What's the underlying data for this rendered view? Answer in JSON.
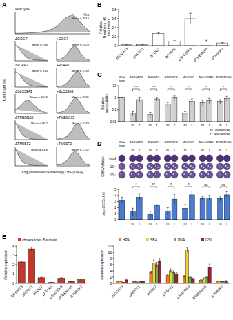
{
  "chart_data": [
    {
      "type": "line",
      "panel_label": "A",
      "ylabel": "Cell number",
      "xlabel": "Log (fluorescence intensity) / HS (10E4)",
      "x": [
        0,
        1,
        2,
        3,
        4,
        5,
        6,
        7,
        8,
        9
      ],
      "xlim": [
        0,
        9
      ],
      "ylim": [
        0,
        100
      ],
      "tick_labels": false,
      "color": "#bdbdbd",
      "series": [
        {
          "name": "Wild type",
          "label": "+Vec",
          "annotation": "Mean = 3014",
          "values": [
            2,
            3,
            5,
            8,
            15,
            35,
            75,
            95,
            50,
            10
          ]
        },
        {
          "name": "ΔCOG7",
          "annotation": "Mean = 286",
          "values": [
            90,
            70,
            40,
            20,
            10,
            6,
            4,
            3,
            2,
            1
          ]
        },
        {
          "name": "+COG7",
          "annotation": "Mean = 1129",
          "values": [
            5,
            10,
            20,
            40,
            70,
            85,
            60,
            30,
            10,
            3
          ]
        },
        {
          "name": "ΔPTAR1",
          "annotation": "Mean = 330",
          "values": [
            85,
            75,
            45,
            22,
            10,
            6,
            4,
            3,
            2,
            1
          ]
        },
        {
          "name": "+PTAR1",
          "annotation": "Mean = 2339",
          "values": [
            3,
            5,
            10,
            25,
            50,
            80,
            90,
            55,
            20,
            5
          ]
        },
        {
          "name": "ΔSLC39A9",
          "annotation": "Mean = 1076",
          "values": [
            20,
            35,
            55,
            75,
            70,
            50,
            30,
            15,
            6,
            2
          ]
        },
        {
          "name": "+SLC39A9",
          "annotation": "Mean = 2331",
          "values": [
            3,
            6,
            12,
            30,
            60,
            90,
            75,
            40,
            12,
            3
          ]
        },
        {
          "name": "ΔTMEM165",
          "annotation": "Mean = 96.2",
          "values": [
            95,
            60,
            25,
            12,
            6,
            3,
            2,
            1,
            1,
            0
          ]
        },
        {
          "name": "+TMEM165",
          "annotation": "Mean = 2743",
          "values": [
            3,
            5,
            10,
            20,
            45,
            80,
            90,
            60,
            20,
            5
          ]
        },
        {
          "name": "ΔTM9SF2",
          "annotation": "Mean = 61.6",
          "values": [
            95,
            55,
            22,
            10,
            5,
            3,
            2,
            1,
            1,
            0
          ]
        },
        {
          "name": "+TM9SF2",
          "annotation": "Mean = 1752",
          "values": [
            4,
            8,
            16,
            35,
            65,
            85,
            65,
            35,
            10,
            3
          ]
        }
      ]
    },
    {
      "type": "bar",
      "panel_label": "B",
      "ylabel": "Relative N-sulfated HS expression",
      "categories": [
        "ΔB3GAT3",
        "ΔNDST1",
        "ΔCOG7",
        "ΔPTAR1",
        "ΔSLC39A9",
        "ΔTMEM165",
        "ΔTM9SF2"
      ],
      "values": [
        0.02,
        0.02,
        0.27,
        0.1,
        0.6,
        0.1,
        0.06
      ],
      "errors": [
        0.01,
        0.01,
        0.02,
        0.01,
        0.12,
        0.02,
        0.01
      ],
      "ylim": [
        0,
        0.8
      ],
      "yticks": [
        0,
        0.2,
        0.4,
        0.6,
        0.8
      ],
      "color": "#ffffff"
    },
    {
      "type": "bar",
      "panel_label": "C",
      "ylabel": "Relative susceptibility",
      "groups": [
        "Wild type",
        "ΔB3GAT3",
        "ΔNDST1",
        "ΔTM9SF2",
        "ΔCOG7",
        "ΔSLC39A9",
        "ΔTMEM165"
      ],
      "categories": [
        null,
        "m",
        "r",
        "m",
        "r",
        "m",
        "r",
        "m",
        "r",
        "m",
        "r",
        "m",
        "r"
      ],
      "values": [
        1,
        0.05,
        0.7,
        0.04,
        0.8,
        0.3,
        1.0,
        0.05,
        0.5,
        0.4,
        0.6,
        0.5,
        0.9
      ],
      "errors": [
        0,
        0.02,
        0.3,
        0.02,
        0.25,
        0.1,
        0.4,
        0.02,
        0.3,
        0.2,
        0.3,
        0.2,
        0.4
      ],
      "log": "y",
      "ylim": [
        0.01,
        10
      ],
      "yticks": [
        0.01,
        0.1,
        1,
        10
      ],
      "annotations": [
        "***",
        "***",
        "*",
        "*",
        "*",
        "*"
      ],
      "key": [
        "m : mutant cell",
        "r : rescued cell"
      ],
      "color": "#d0d0d0"
    },
    {
      "type": "bar",
      "panel_label": "D",
      "ylabel": "Log₁₀CCID₅₀/ml",
      "groups": [
        "Wild type",
        "ΔB3GAT3",
        "ΔNDST1",
        "ΔTM9SF2",
        "ΔCOG7",
        "ΔSLC39A9",
        "ΔTMEM165"
      ],
      "categories": [
        null,
        "m",
        "r",
        "m",
        "r",
        "m",
        "r",
        "m",
        "r",
        "m",
        "r",
        "m",
        "r"
      ],
      "values": [
        3.2,
        1.3,
        3.7,
        0.9,
        2.4,
        1.4,
        3.4,
        1.9,
        4.1,
        3.5,
        3.6,
        3.5,
        4.1
      ],
      "errors": [
        0.5,
        0.6,
        0.6,
        0.5,
        0.1,
        0.6,
        0.8,
        0.6,
        0.6,
        0.3,
        0.4,
        0.4,
        0.5
      ],
      "ylim": [
        0,
        5
      ],
      "yticks": [
        0,
        1,
        2,
        3,
        4,
        5
      ],
      "annotations": [
        "*",
        "**",
        "*",
        "*",
        "ns",
        "ns"
      ],
      "image_rows": [
        "mock",
        "10⁻⁴",
        "10⁻⁵"
      ],
      "image_label": "CHIKV dilution",
      "color": "#4a7bd0"
    },
    {
      "type": "bar",
      "panel_label": "E",
      "ylabel": "Relative expression",
      "categories": [
        "ΔB3GAT3",
        "ΔNDST1",
        "ΔCOG7",
        "ΔPTAR1",
        "ΔSLC39A9",
        "ΔTMEM165",
        "ΔTM9SF2"
      ],
      "series": [
        {
          "name": "cholera toxin B subunit",
          "color": "#c0392b",
          "values": [
            2.3,
            3.7,
            0.6,
            0.1,
            0.55,
            0.2,
            0.4
          ],
          "errors": [
            0.1,
            0.2,
            0.05,
            0.02,
            0.05,
            0.02,
            0.05
          ]
        }
      ],
      "ylim": [
        0,
        4
      ],
      "yticks": [
        0,
        1,
        2,
        3,
        4
      ],
      "legend": "top"
    },
    {
      "type": "bar",
      "ylabel": "Relative expression",
      "categories": [
        "ΔB3GAT3",
        "ΔNDST1",
        "ΔCOG7",
        "ΔPTAR1",
        "ΔSLC39A9",
        "ΔTMEM165",
        "ΔTM9SF2"
      ],
      "series": [
        {
          "name": "HPA",
          "color": "#f07d1a",
          "values": [
            0.7,
            0.6,
            3.5,
            2.5,
            2.2,
            1.0,
            0.7
          ],
          "errors": [
            0.1,
            0.1,
            0.4,
            0.3,
            0.3,
            0.2,
            0.1
          ]
        },
        {
          "name": "SBA",
          "color": "#f4d03f",
          "values": [
            0.6,
            0.4,
            6.5,
            4.0,
            10.8,
            1.5,
            0.5
          ],
          "errors": [
            0.1,
            0.1,
            1.0,
            0.6,
            0.6,
            0.3,
            0.1
          ]
        },
        {
          "name": "PNA",
          "color": "#6ab04c",
          "values": [
            0.3,
            0.5,
            6.0,
            3.5,
            2.0,
            2.0,
            0.5
          ],
          "errors": [
            0.05,
            0.1,
            0.8,
            0.5,
            0.3,
            0.3,
            0.1
          ]
        },
        {
          "name": "GSII",
          "color": "#a3202d",
          "values": [
            1.1,
            0.7,
            7.3,
            3.1,
            1.5,
            5.2,
            0.8
          ],
          "errors": [
            0.1,
            0.1,
            0.8,
            0.4,
            0.2,
            1.0,
            0.1
          ]
        }
      ],
      "ylim": [
        0,
        12
      ],
      "yticks": [
        0,
        2,
        4,
        6,
        8,
        10,
        12
      ],
      "legend": "top"
    }
  ]
}
